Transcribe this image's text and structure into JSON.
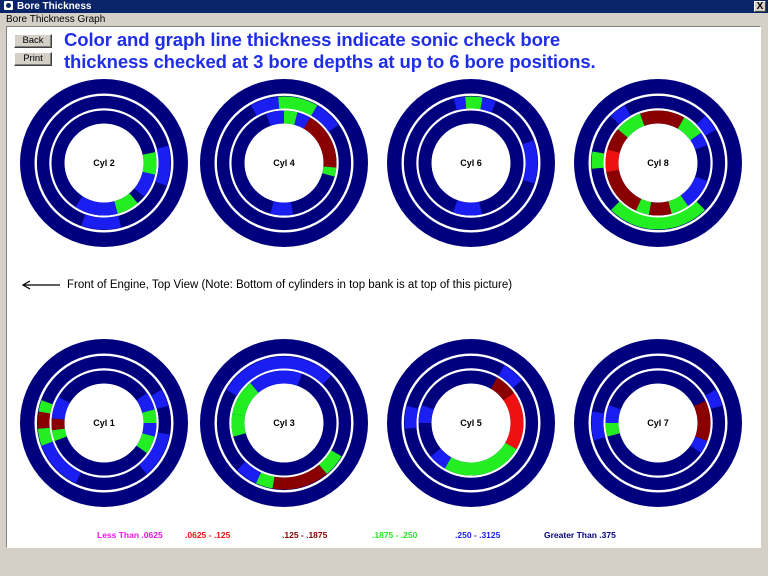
{
  "window": {
    "title": "Bore Thickness",
    "close_label": "X"
  },
  "menu": {
    "label": "Bore Thickness Graph"
  },
  "buttons": {
    "back": "Back",
    "print": "Print"
  },
  "headline": {
    "line1": "Color and graph line thickness indicate sonic check bore",
    "line2": "thickness checked at 3 bore depths at up to 6 bore positions."
  },
  "front_note": "Front of Engine, Top View (Note: Bottom of cylinders in top bank is at top of this picture)",
  "colors": {
    "base": "#00007f",
    "blue": "#1a1ef0",
    "green": "#22ee22",
    "darkred": "#8a0000",
    "red": "#ee1111",
    "magenta": "#ee11ee"
  },
  "legend": [
    {
      "label": "Less Than .0625",
      "color": "#ee11ee"
    },
    {
      "label": ".0625 - .125",
      "color": "#ee1111"
    },
    {
      "label": ".125 - .1875",
      "color": "#8a0000"
    },
    {
      "label": ".1875 - .250",
      "color": "#22ee22"
    },
    {
      "label": ".250 - .3125",
      "color": "#1a1ef0"
    },
    {
      "label": "Greater Than .375",
      "color": "#00007f"
    }
  ],
  "cylinders": [
    {
      "label": "Cyl 2",
      "segments": [
        {
          "ring": 1,
          "from": 75,
          "to": 110,
          "color": "blue"
        },
        {
          "ring": 1,
          "from": 165,
          "to": 200,
          "color": "blue"
        },
        {
          "ring": 2,
          "from": 78,
          "to": 103,
          "color": "green"
        },
        {
          "ring": 2,
          "from": 103,
          "to": 130,
          "color": "blue"
        },
        {
          "ring": 2,
          "from": 140,
          "to": 165,
          "color": "green"
        },
        {
          "ring": 2,
          "from": 165,
          "to": 190,
          "color": "blue"
        },
        {
          "ring": 2,
          "from": 190,
          "to": 213,
          "color": "blue"
        }
      ]
    },
    {
      "label": "Cyl 4",
      "segments": [
        {
          "ring": 1,
          "from": 330,
          "to": 355,
          "color": "blue"
        },
        {
          "ring": 1,
          "from": 355,
          "to": 30,
          "color": "green"
        },
        {
          "ring": 1,
          "from": 30,
          "to": 55,
          "color": "blue"
        },
        {
          "ring": 2,
          "from": 340,
          "to": 0,
          "color": "blue"
        },
        {
          "ring": 2,
          "from": 0,
          "to": 15,
          "color": "green"
        },
        {
          "ring": 2,
          "from": 15,
          "to": 30,
          "color": "blue"
        },
        {
          "ring": 2,
          "from": 30,
          "to": 95,
          "color": "darkred"
        },
        {
          "ring": 2,
          "from": 95,
          "to": 105,
          "color": "green"
        },
        {
          "ring": 2,
          "from": 170,
          "to": 195,
          "color": "blue"
        }
      ]
    },
    {
      "label": "Cyl 6",
      "segments": [
        {
          "ring": 1,
          "from": 345,
          "to": 355,
          "color": "blue"
        },
        {
          "ring": 1,
          "from": 355,
          "to": 10,
          "color": "green"
        },
        {
          "ring": 1,
          "from": 10,
          "to": 22,
          "color": "blue"
        },
        {
          "ring": 1,
          "from": 70,
          "to": 108,
          "color": "blue"
        },
        {
          "ring": 2,
          "from": 168,
          "to": 200,
          "color": "blue"
        }
      ]
    },
    {
      "label": "Cyl 8",
      "segments": [
        {
          "ring": 1,
          "from": 315,
          "to": 330,
          "color": "blue"
        },
        {
          "ring": 1,
          "from": 45,
          "to": 60,
          "color": "blue"
        },
        {
          "ring": 1,
          "from": 265,
          "to": 280,
          "color": "green"
        },
        {
          "ring": 2,
          "from": 310,
          "to": 340,
          "color": "green"
        },
        {
          "ring": 2,
          "from": 340,
          "to": 30,
          "color": "darkred"
        },
        {
          "ring": 2,
          "from": 30,
          "to": 55,
          "color": "green"
        },
        {
          "ring": 2,
          "from": 55,
          "to": 70,
          "color": "blue"
        },
        {
          "ring": 2,
          "from": 110,
          "to": 145,
          "color": "blue"
        },
        {
          "ring": 2,
          "from": 145,
          "to": 165,
          "color": "green"
        },
        {
          "ring": 2,
          "from": 165,
          "to": 190,
          "color": "darkred"
        },
        {
          "ring": 2,
          "from": 190,
          "to": 205,
          "color": "green"
        },
        {
          "ring": 2,
          "from": 205,
          "to": 260,
          "color": "darkred"
        },
        {
          "ring": 2,
          "from": 260,
          "to": 285,
          "color": "red"
        },
        {
          "ring": 2,
          "from": 285,
          "to": 310,
          "color": "darkred"
        },
        {
          "ring": 1,
          "from": 135,
          "to": 225,
          "color": "green"
        }
      ]
    },
    {
      "label": "Cyl 1",
      "segments": [
        {
          "ring": 1,
          "from": 205,
          "to": 250,
          "color": "blue"
        },
        {
          "ring": 1,
          "from": 250,
          "to": 265,
          "color": "green"
        },
        {
          "ring": 1,
          "from": 265,
          "to": 280,
          "color": "darkred"
        },
        {
          "ring": 1,
          "from": 280,
          "to": 290,
          "color": "green"
        },
        {
          "ring": 2,
          "from": 250,
          "to": 262,
          "color": "green"
        },
        {
          "ring": 2,
          "from": 262,
          "to": 275,
          "color": "darkred"
        },
        {
          "ring": 2,
          "from": 275,
          "to": 300,
          "color": "blue"
        },
        {
          "ring": 2,
          "from": 55,
          "to": 75,
          "color": "blue"
        },
        {
          "ring": 2,
          "from": 75,
          "to": 90,
          "color": "green"
        },
        {
          "ring": 2,
          "from": 90,
          "to": 105,
          "color": "blue"
        },
        {
          "ring": 2,
          "from": 105,
          "to": 125,
          "color": "green"
        },
        {
          "ring": 1,
          "from": 100,
          "to": 140,
          "color": "blue"
        },
        {
          "ring": 1,
          "from": 60,
          "to": 75,
          "color": "blue"
        }
      ]
    },
    {
      "label": "Cyl 3",
      "segments": [
        {
          "ring": 2,
          "from": 280,
          "to": 320,
          "color": "green"
        },
        {
          "ring": 2,
          "from": 320,
          "to": 360,
          "color": "blue"
        },
        {
          "ring": 1,
          "from": 300,
          "to": 360,
          "color": "blue"
        },
        {
          "ring": 1,
          "from": 0,
          "to": 45,
          "color": "blue"
        },
        {
          "ring": 2,
          "from": 0,
          "to": 20,
          "color": "blue"
        },
        {
          "ring": 2,
          "from": 255,
          "to": 280,
          "color": "green"
        },
        {
          "ring": 1,
          "from": 120,
          "to": 140,
          "color": "green"
        },
        {
          "ring": 1,
          "from": 140,
          "to": 190,
          "color": "darkred"
        },
        {
          "ring": 1,
          "from": 190,
          "to": 205,
          "color": "green"
        },
        {
          "ring": 1,
          "from": 205,
          "to": 225,
          "color": "blue"
        }
      ]
    },
    {
      "label": "Cyl 5",
      "segments": [
        {
          "ring": 1,
          "from": 265,
          "to": 285,
          "color": "blue"
        },
        {
          "ring": 2,
          "from": 270,
          "to": 290,
          "color": "blue"
        },
        {
          "ring": 2,
          "from": 30,
          "to": 55,
          "color": "darkred"
        },
        {
          "ring": 2,
          "from": 55,
          "to": 120,
          "color": "red"
        },
        {
          "ring": 1,
          "from": 30,
          "to": 50,
          "color": "blue"
        },
        {
          "ring": 2,
          "from": 120,
          "to": 210,
          "color": "green"
        },
        {
          "ring": 2,
          "from": 210,
          "to": 230,
          "color": "blue"
        }
      ]
    },
    {
      "label": "Cyl 7",
      "segments": [
        {
          "ring": 1,
          "from": 255,
          "to": 280,
          "color": "blue"
        },
        {
          "ring": 2,
          "from": 255,
          "to": 270,
          "color": "green"
        },
        {
          "ring": 2,
          "from": 270,
          "to": 290,
          "color": "blue"
        },
        {
          "ring": 1,
          "from": 60,
          "to": 75,
          "color": "blue"
        },
        {
          "ring": 2,
          "from": 65,
          "to": 85,
          "color": "darkred"
        },
        {
          "ring": 2,
          "from": 85,
          "to": 110,
          "color": "darkred"
        },
        {
          "ring": 2,
          "from": 110,
          "to": 125,
          "color": "blue"
        }
      ]
    }
  ]
}
